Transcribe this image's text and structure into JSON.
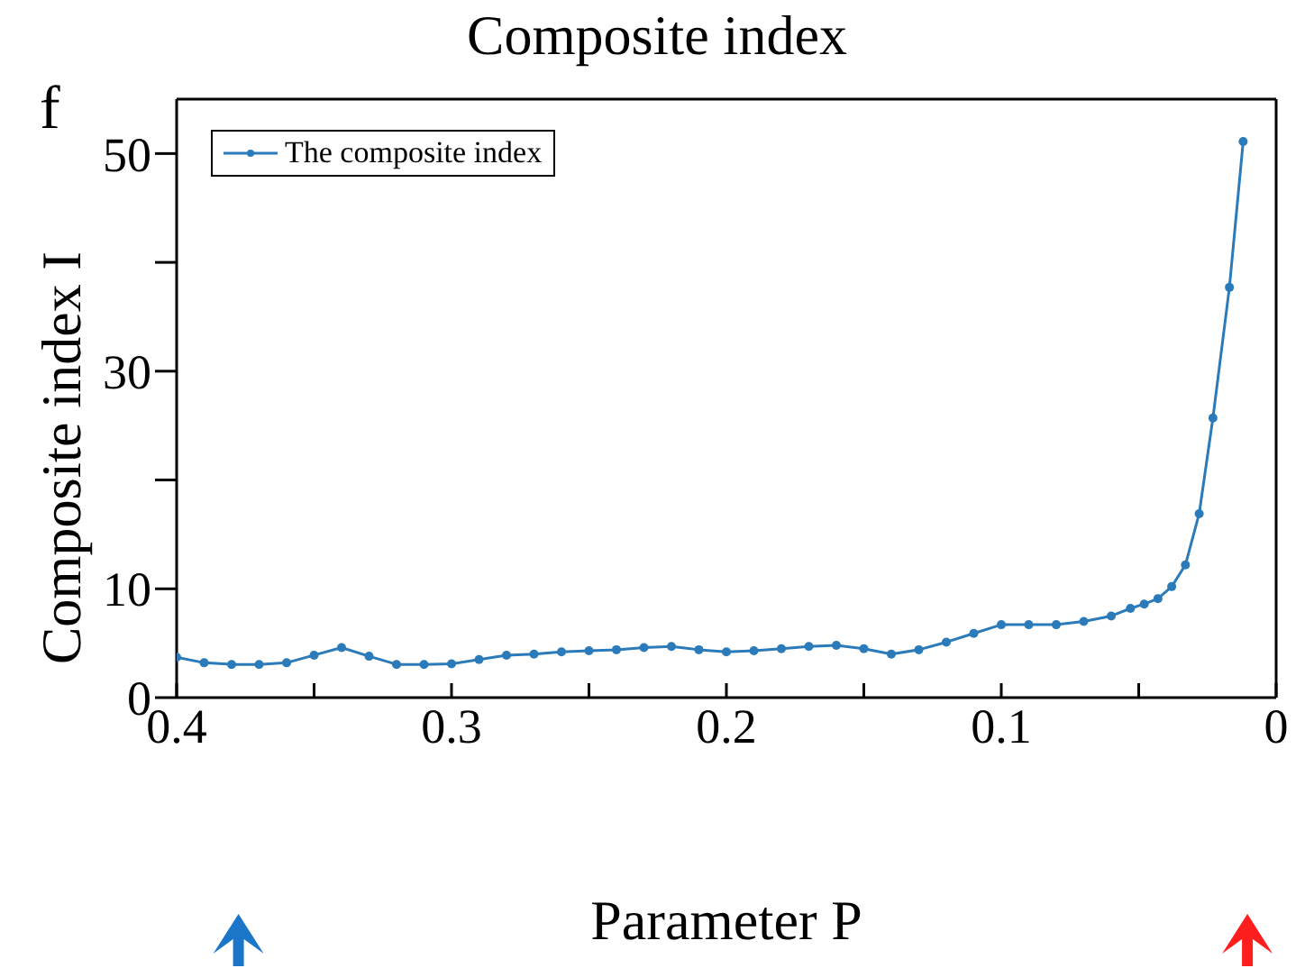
{
  "chart_data": {
    "type": "line",
    "title": "Composite index",
    "xlabel": "Parameter P",
    "ylabel": "Composite index I",
    "annotations": [
      "f"
    ],
    "x": [
      0.4,
      0.39,
      0.38,
      0.37,
      0.36,
      0.35,
      0.34,
      0.33,
      0.32,
      0.31,
      0.3,
      0.29,
      0.28,
      0.27,
      0.26,
      0.25,
      0.24,
      0.23,
      0.22,
      0.21,
      0.2,
      0.19,
      0.18,
      0.17,
      0.16,
      0.15,
      0.14,
      0.13,
      0.12,
      0.11,
      0.1,
      0.09,
      0.08,
      0.07,
      0.06,
      0.053,
      0.048,
      0.043,
      0.038,
      0.033,
      0.028,
      0.023,
      0.017,
      0.012
    ],
    "series": [
      {
        "name": "The composite index",
        "color": "#2b7bba",
        "values": [
          3.7,
          3.2,
          3.05,
          3.05,
          3.2,
          3.9,
          4.6,
          3.8,
          3.05,
          3.05,
          3.1,
          3.5,
          3.9,
          4.0,
          4.2,
          4.3,
          4.4,
          4.6,
          4.7,
          4.4,
          4.2,
          4.3,
          4.5,
          4.7,
          4.8,
          4.5,
          4.0,
          4.4,
          5.1,
          5.9,
          6.7,
          6.7,
          6.7,
          7.0,
          7.5,
          8.2,
          8.6,
          9.1,
          10.2,
          12.2,
          16.9,
          25.7,
          37.7,
          51.1
        ]
      }
    ],
    "xlim": [
      0.4,
      0
    ],
    "xticks": [
      0.4,
      {
        "value": 0.35,
        "label": null
      },
      0.3,
      {
        "value": 0.25,
        "label": null
      },
      0.2,
      {
        "value": 0.15,
        "label": null
      },
      0.1,
      {
        "value": 0.05,
        "label": null
      },
      0
    ],
    "ylim": [
      0,
      55
    ],
    "yticks": [
      0,
      10,
      {
        "value": 20,
        "label": null
      },
      30,
      {
        "value": 40,
        "label": null
      },
      50
    ],
    "legend": "top left",
    "marker": "circle",
    "line_style": "solid",
    "grid": false
  }
}
